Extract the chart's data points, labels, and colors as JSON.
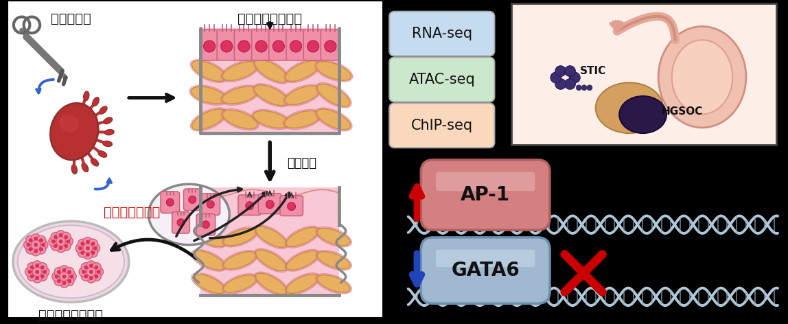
{
  "bg_color": "#000000",
  "left_panel_bg": "#ffffff",
  "title_left1": "卵管采摚出",
  "title_left2": "卵管分泌上皮細胞",
  "label_single": "単離培養",
  "label_cancer": "がん遣伝子導入",
  "label_model": "発がんモデル細胞",
  "seq_labels": [
    "RNA-seq",
    "ATAC-seq",
    "ChIP-seq"
  ],
  "seq_colors": [
    "#c5dcf0",
    "#cce8cc",
    "#fad8bc"
  ],
  "ap1_label": "AP-1",
  "gata6_label": "GATA6",
  "ap1_color_main": "#d48080",
  "ap1_color_light": "#e8b0b0",
  "gata6_color_main": "#a0b8d0",
  "gata6_color_light": "#c8d8e8",
  "up_arrow_color": "#cc0000",
  "down_arrow_color": "#2244bb",
  "x_color": "#cc0000",
  "dna_color1": "#b0c8d8",
  "dna_color2": "#8aaabb",
  "stic_label": "STIC",
  "hgsoc_label": "HGSOC",
  "text_color": "#000000",
  "cancer_text_color": "#cc0000",
  "wall_color": "#888888"
}
